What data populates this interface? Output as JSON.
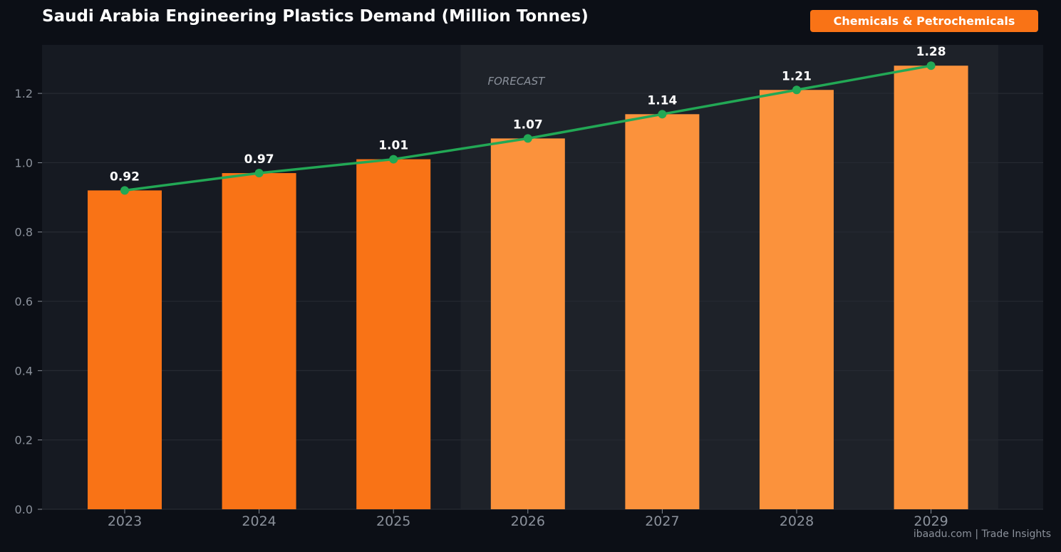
{
  "header": {
    "title": "Saudi Arabia Engineering Plastics Demand (Million Tonnes)",
    "badge": "Chemicals & Petrochemicals"
  },
  "footer": {
    "text": "ibaadu.com | Trade Insights"
  },
  "colors": {
    "actual_bar": "#f97316",
    "forecast_bar": "#fb923c",
    "trend_line": "#22a855",
    "badge": "#f97316"
  },
  "chart_data": {
    "type": "bar",
    "title": "Saudi Arabia Engineering Plastics Demand (Million Tonnes)",
    "xlabel": "",
    "ylabel": "",
    "categories": [
      "2023",
      "2024",
      "2025",
      "2026",
      "2027",
      "2028",
      "2029"
    ],
    "values": [
      0.92,
      0.97,
      1.01,
      1.07,
      1.14,
      1.21,
      1.28
    ],
    "value_labels": [
      "0.92",
      "0.97",
      "1.01",
      "1.07",
      "1.14",
      "1.21",
      "1.28"
    ],
    "forecast_flags": [
      false,
      false,
      false,
      true,
      true,
      true,
      true
    ],
    "forecast_region_label": "FORECAST",
    "overlay_line": {
      "type": "line",
      "values": [
        0.92,
        0.97,
        1.01,
        1.07,
        1.14,
        1.21,
        1.28
      ]
    },
    "ylim": [
      0,
      1.34
    ],
    "yticks": [
      0.0,
      0.2,
      0.4,
      0.6,
      0.8,
      1.0,
      1.2
    ],
    "ytick_labels": [
      "0.0",
      "0.2",
      "0.4",
      "0.6",
      "0.8",
      "1.0",
      "1.2"
    ],
    "grid": true,
    "legend": "none"
  }
}
